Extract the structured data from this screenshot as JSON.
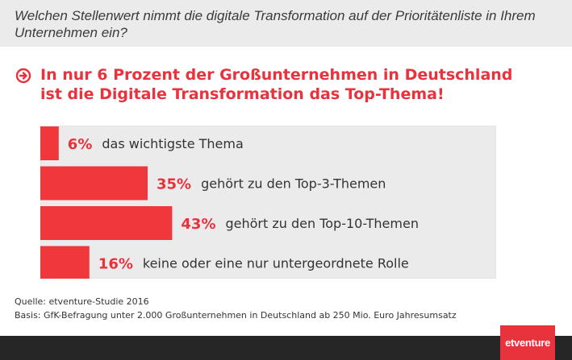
{
  "question": "Welchen Stellenwert nimmt die digitale Transformation auf der Prioritätenliste in Ihrem Unternehmen ein?",
  "headline": {
    "line1": "In nur 6 Prozent der Großunternehmen in Deutschland",
    "line2": "ist die Digitale Transformation das Top-Thema!"
  },
  "chart_data": {
    "type": "bar",
    "orientation": "horizontal",
    "bar_color": "#f0383c",
    "panel_color": "#ebebeb",
    "categories": [
      "das wichtigste Thema",
      "gehört zu den Top-3-Themen",
      "gehört zu den Top-10-Themen",
      "keine oder eine nur untergeordnete Rolle"
    ],
    "values": [
      6,
      35,
      43,
      16
    ],
    "value_labels": [
      "6%",
      "35%",
      "43%",
      "16%"
    ],
    "xlim": [
      0,
      100
    ]
  },
  "source": {
    "line1": "Quelle: etventure-Studie 2016",
    "line2": "Basis: GfK-Befragung unter 2.000 Großunternehmen in Deutschland ab 250 Mio. Euro Jahresumsatz"
  },
  "logo": {
    "text": "etventure",
    "color": "#e8323c"
  }
}
